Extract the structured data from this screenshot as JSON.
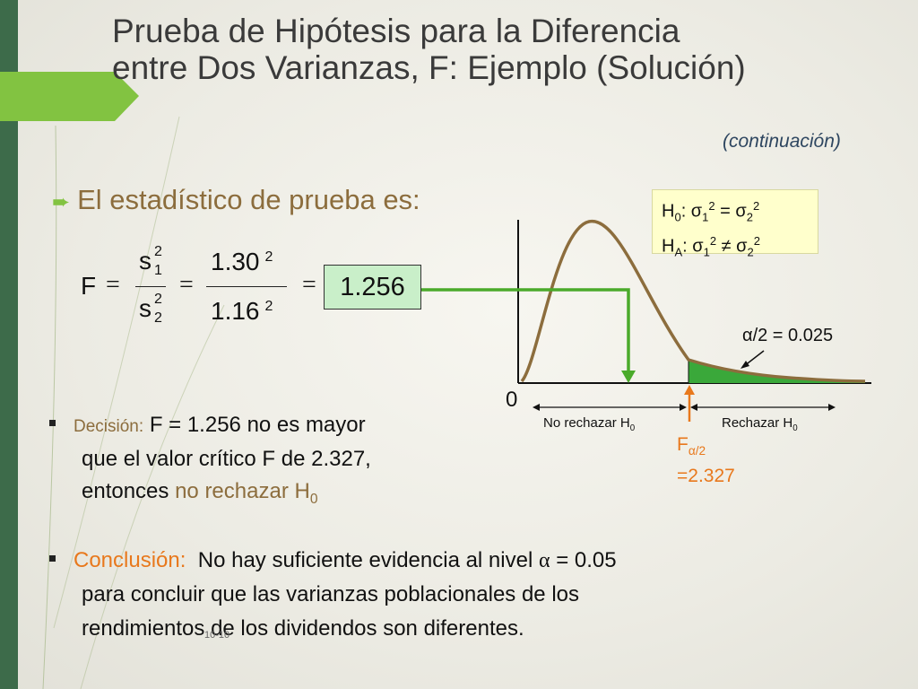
{
  "title": {
    "line1": "Prueba de Hipótesis para la Diferencia",
    "line2": "entre Dos Varianzas, F: Ejemplo (Solución)"
  },
  "continuation": "(continuación)",
  "test_statistic_label": "El estadístico de prueba es:",
  "hypotheses": {
    "h0_base": "H",
    "h0_sub": "0",
    "h0_rest": ": σ",
    "h0_s1": "1",
    "h0_sup1": "2",
    "h0_eq": " = σ",
    "h0_s2": "2",
    "h0_sup2": "2",
    "ha_base": "H",
    "ha_sub": "A",
    "ha_rest": ": σ",
    "ha_s1": "1",
    "ha_sup1": "2",
    "ha_neq": " ≠ σ",
    "ha_s2": "2",
    "ha_sup2": "2"
  },
  "formula": {
    "F": "F",
    "eq": "=",
    "s": "s",
    "exp": "2",
    "sub1": "1",
    "sub2": "2",
    "num": "1.30",
    "den": "1.16"
  },
  "result": "1.256",
  "chart": {
    "zero": "0",
    "alpha_label": "α/2 = 0.025",
    "no_reject": "No rechazar H",
    "no_reject_sub": "0",
    "reject": "Rechazar H",
    "reject_sub": "0",
    "fcrit_F": "F",
    "fcrit_sub": "α/2",
    "fcrit_value": "=2.327"
  },
  "decision": {
    "label": "Decisión:",
    "text1": " F = 1.256 no es mayor",
    "text2": "que el valor crítico F de 2.327,",
    "text3": "entonces ",
    "highlight": "no rechazar H",
    "highlight_sub": "0"
  },
  "conclusion": {
    "label": "Conclusión:",
    "text1": "  No hay suficiente evidencia al nivel ",
    "alpha": "α",
    "text1b": " = 0.05",
    "text2": "para concluir que las varianzas poblacionales de los",
    "text3": "rendimientos de los dividendos son diferentes."
  },
  "page_number": "10-10",
  "colors": {
    "band": "#3d6b4a",
    "accent": "#82c341",
    "gold": "#8c6d3d",
    "orange": "#e8781c",
    "curve": "#8c6d3d",
    "green_line": "#4aaa2a"
  }
}
